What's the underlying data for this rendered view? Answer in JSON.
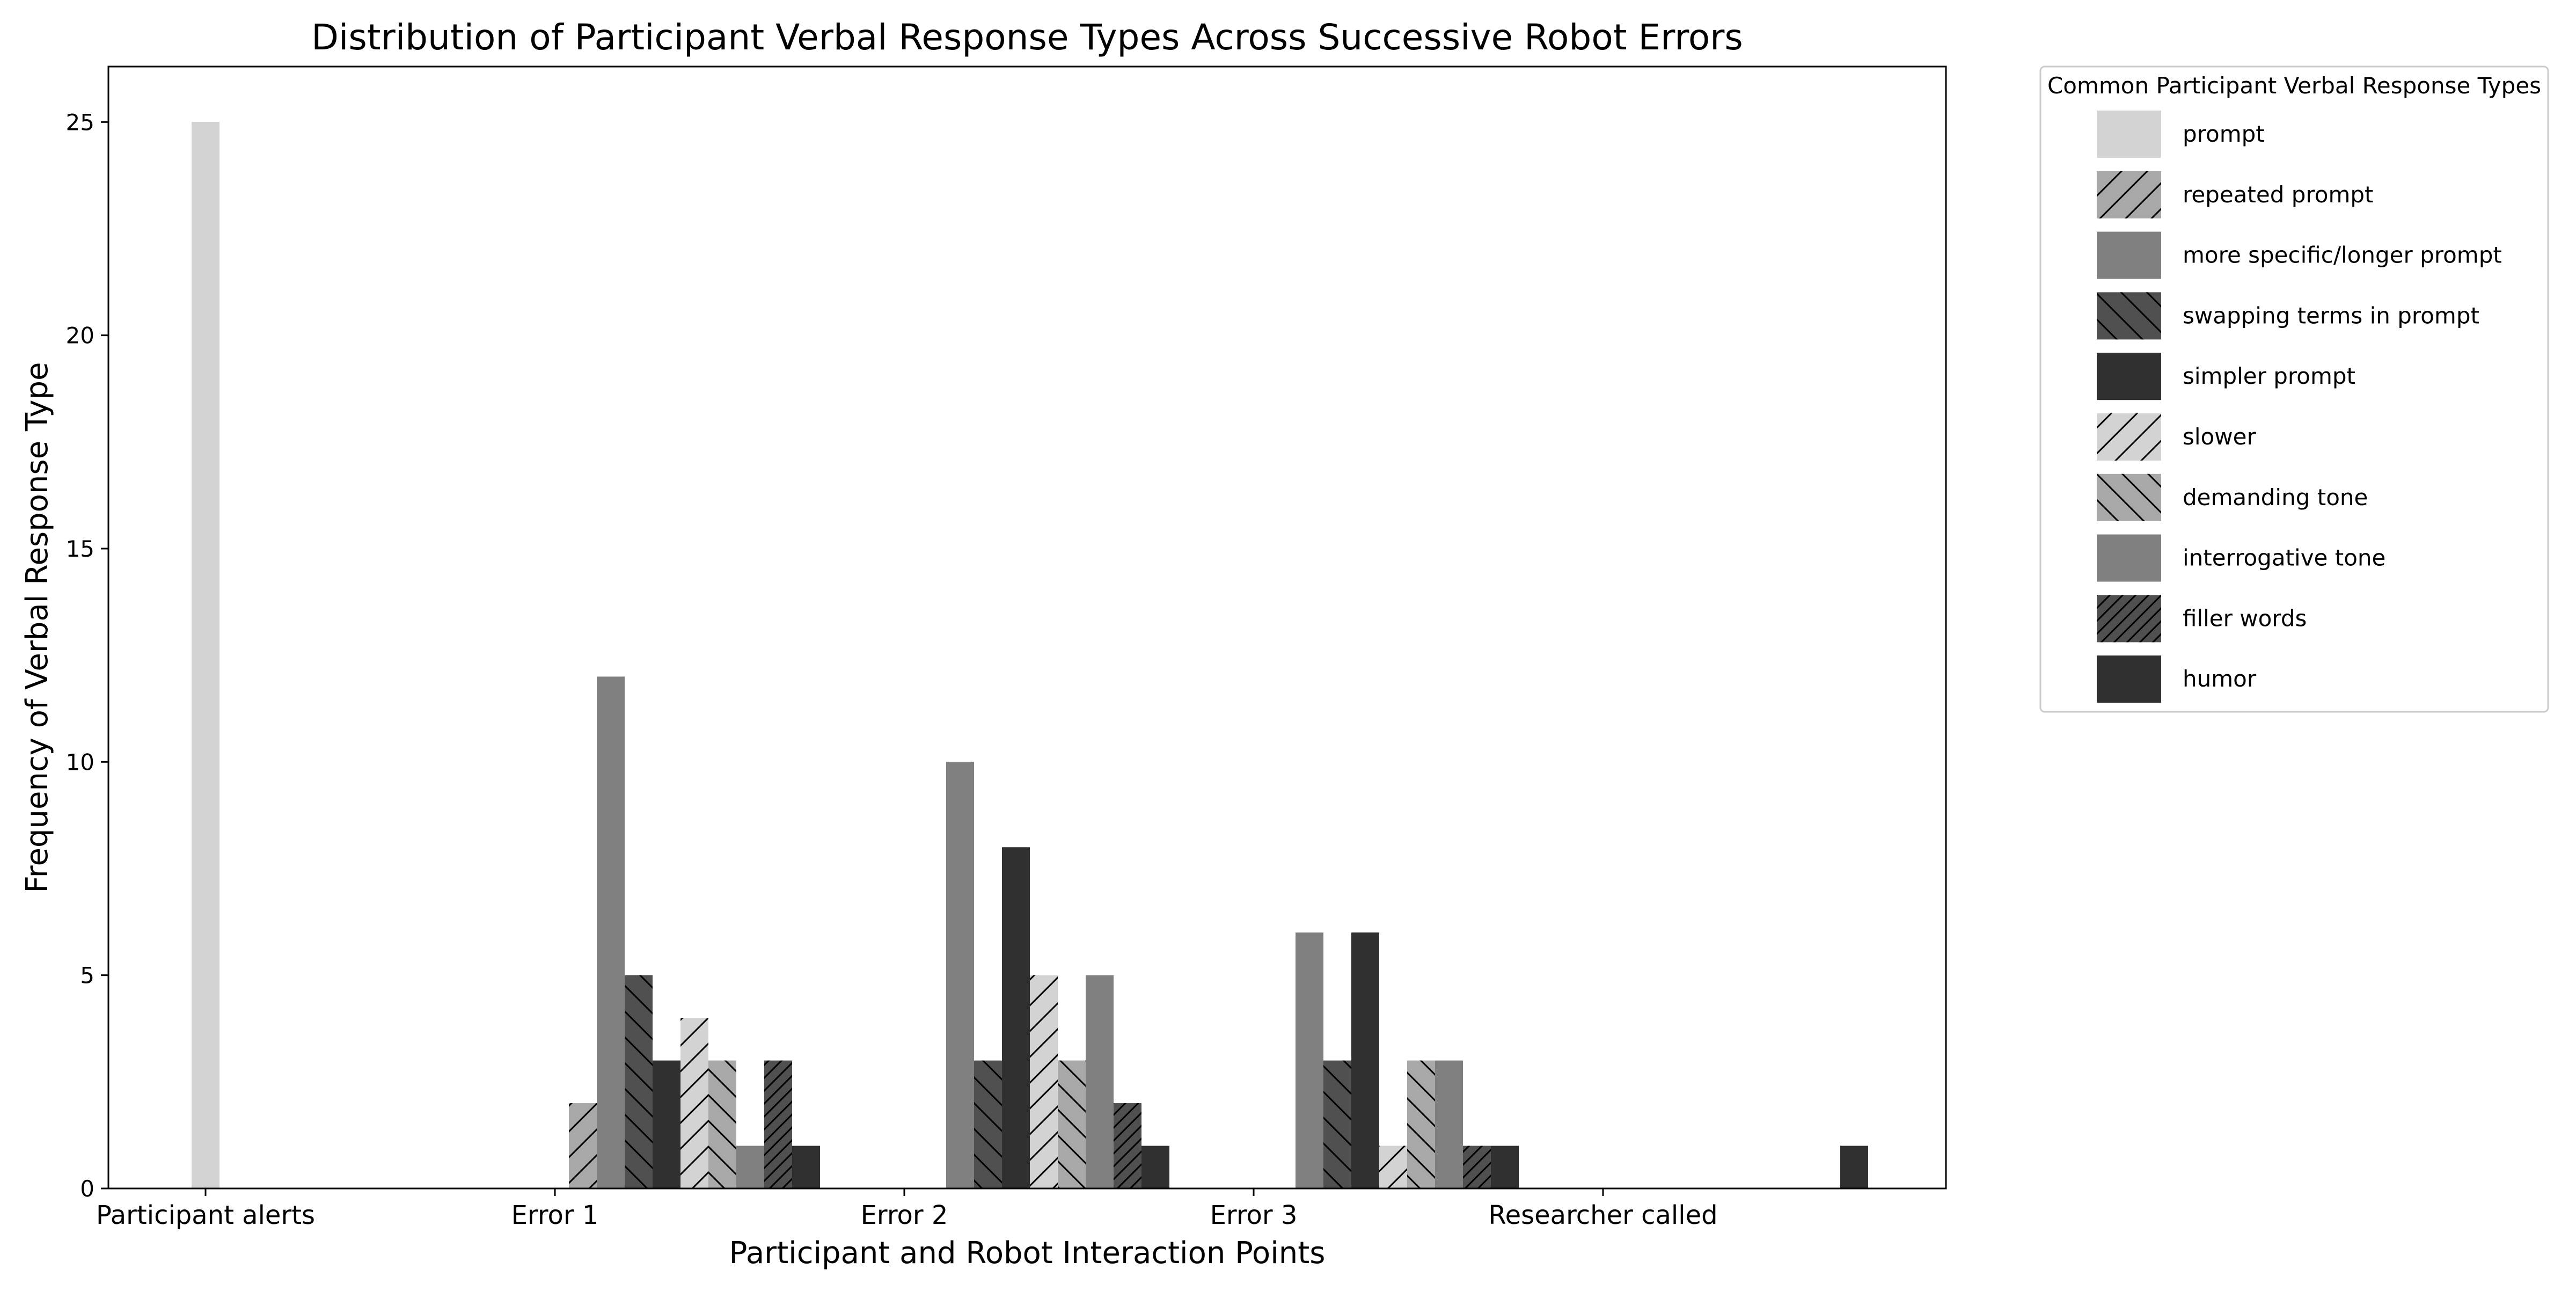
{
  "chart_data": {
    "type": "bar",
    "title": "Distribution of Participant Verbal Response Types Across Successive Robot Errors",
    "xlabel": "Participant and Robot Interaction Points",
    "ylabel": "Frequency of Verbal Response Type",
    "categories": [
      "Participant alerts",
      "Error 1",
      "Error 2",
      "Error 3",
      "Researcher called"
    ],
    "ylim": [
      0,
      26.3
    ],
    "yticks": [
      0,
      5,
      10,
      15,
      20,
      25
    ],
    "grid": false,
    "legend": {
      "title": "Common Participant Verbal Response Types",
      "placement": "outside-right"
    },
    "series": [
      {
        "name": "prompt",
        "color": "#d3d3d3",
        "hatch": "none",
        "values": [
          25,
          0,
          0,
          0,
          0
        ]
      },
      {
        "name": "repeated prompt",
        "color": "#a9a9a9",
        "hatch": "forward",
        "values": [
          0,
          2,
          0,
          0,
          0
        ]
      },
      {
        "name": "more specific/longer prompt",
        "color": "#808080",
        "hatch": "none",
        "values": [
          0,
          12,
          10,
          6,
          0
        ]
      },
      {
        "name": "swapping terms in prompt",
        "color": "#505050",
        "hatch": "back",
        "values": [
          0,
          5,
          3,
          3,
          0
        ]
      },
      {
        "name": "simpler prompt",
        "color": "#303030",
        "hatch": "none",
        "values": [
          0,
          3,
          8,
          6,
          0
        ]
      },
      {
        "name": "slower",
        "color": "#d3d3d3",
        "hatch": "forward",
        "values": [
          0,
          4,
          5,
          1,
          0
        ]
      },
      {
        "name": "demanding tone",
        "color": "#a9a9a9",
        "hatch": "back",
        "values": [
          0,
          3,
          3,
          3,
          0
        ]
      },
      {
        "name": "interrogative tone",
        "color": "#808080",
        "hatch": "none",
        "values": [
          0,
          1,
          5,
          3,
          0
        ]
      },
      {
        "name": "filler words",
        "color": "#505050",
        "hatch": "dense-forward",
        "values": [
          0,
          3,
          2,
          1,
          0
        ]
      },
      {
        "name": "humor",
        "color": "#303030",
        "hatch": "none",
        "values": [
          0,
          1,
          1,
          1,
          1
        ]
      }
    ]
  }
}
